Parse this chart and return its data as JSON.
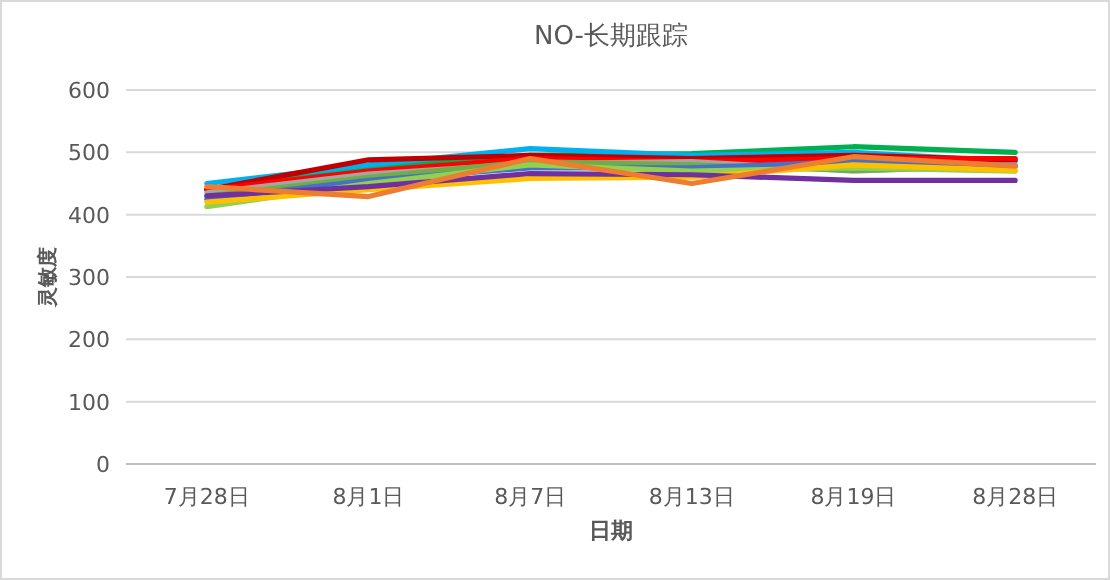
{
  "chart_data": {
    "type": "line",
    "title": "NO-长期跟踪",
    "xlabel": "日期",
    "ylabel": "灵敏度",
    "categories": [
      "7月28日",
      "8月1日",
      "8月7日",
      "8月13日",
      "8月19日",
      "8月28日"
    ],
    "ylim": [
      0,
      600
    ],
    "yticks": [
      0,
      100,
      200,
      300,
      400,
      500,
      600
    ],
    "grid": "y",
    "marker": "none",
    "line_style": "solid",
    "series": [
      {
        "color": "#00b050",
        "values": [
          440,
          475,
          495,
          498,
          509,
          500
        ]
      },
      {
        "color": "#00b0f0",
        "values": [
          450,
          480,
          506,
          495,
          500,
          485
        ]
      },
      {
        "color": "#c00000",
        "values": [
          440,
          488,
          495,
          490,
          495,
          488
        ]
      },
      {
        "color": "#ff0000",
        "values": [
          440,
          470,
          490,
          485,
          490,
          490
        ]
      },
      {
        "color": "#a5a5a5",
        "values": [
          435,
          465,
          482,
          485,
          470,
          480
        ]
      },
      {
        "color": "#70ad47",
        "values": [
          430,
          460,
          485,
          480,
          471,
          477
        ]
      },
      {
        "color": "#4472c4",
        "values": [
          425,
          455,
          475,
          475,
          485,
          478
        ]
      },
      {
        "color": "#92d050",
        "values": [
          413,
          450,
          480,
          470,
          475,
          470
        ]
      },
      {
        "color": "#ffc000",
        "values": [
          420,
          440,
          458,
          460,
          480,
          471
        ]
      },
      {
        "color": "#7030a0",
        "values": [
          430,
          445,
          466,
          464,
          455,
          455
        ]
      },
      {
        "color": "#ed7d31",
        "values": [
          445,
          429,
          490,
          450,
          493,
          478
        ]
      }
    ]
  }
}
